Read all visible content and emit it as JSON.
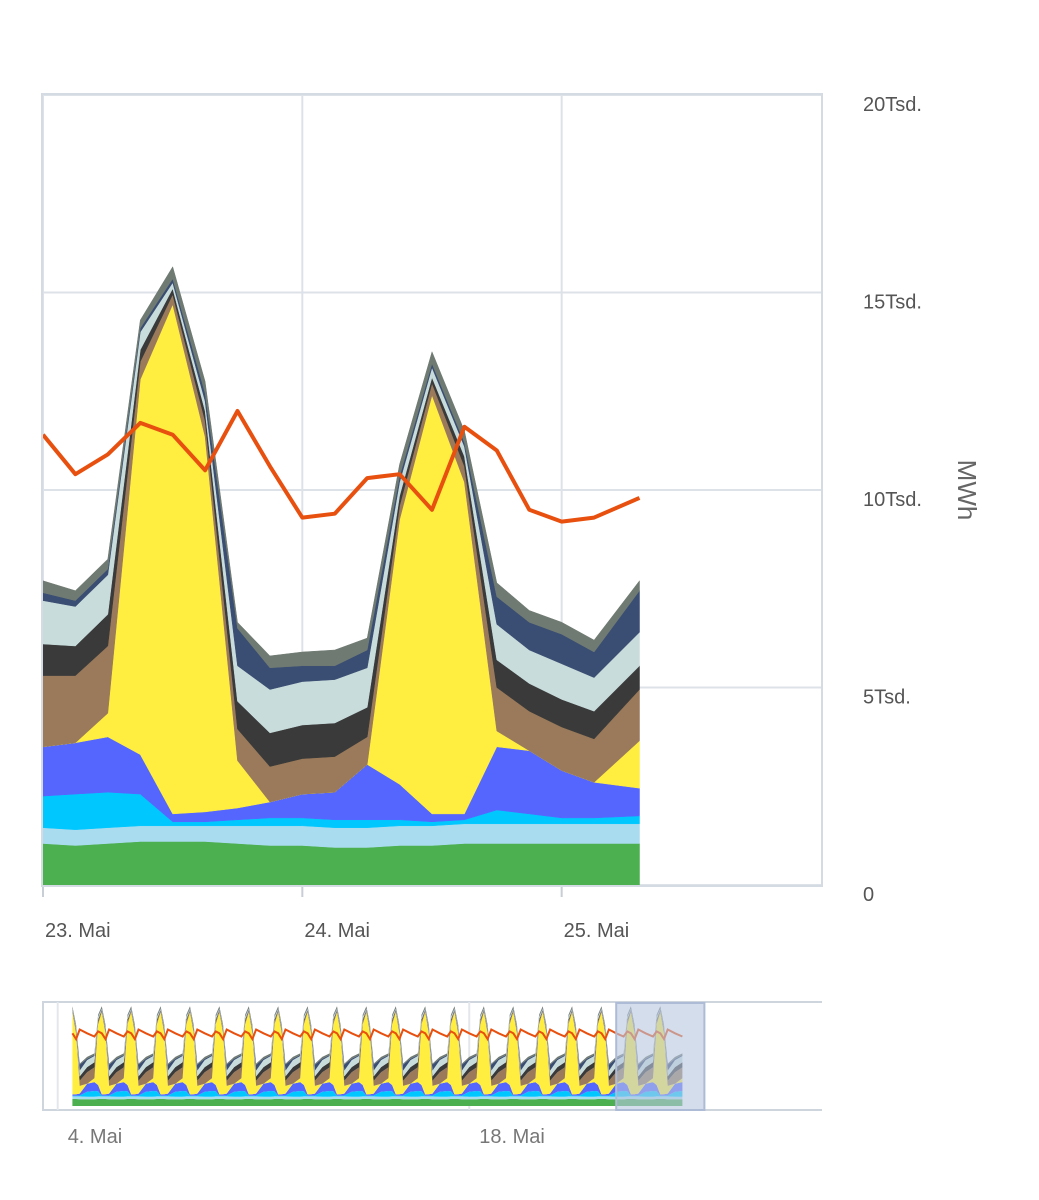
{
  "chart_data": {
    "type": "area",
    "stacked": true,
    "ylabel": "MWh",
    "ylim": [
      0,
      20000
    ],
    "yticks": [
      0,
      5000,
      10000,
      15000,
      20000
    ],
    "ytick_labels": [
      "0",
      "5Tsd.",
      "10Tsd.",
      "15Tsd.",
      "20Tsd."
    ],
    "xlim": [
      0,
      3
    ],
    "xticks": [
      0,
      1,
      2
    ],
    "xtick_labels": [
      "23. Mai",
      "24. Mai",
      "25. Mai"
    ],
    "grid": true,
    "legend": "none",
    "x": [
      0,
      0.125,
      0.25,
      0.375,
      0.5,
      0.625,
      0.75,
      0.875,
      1,
      1.125,
      1.25,
      1.375,
      1.5,
      1.625,
      1.75,
      1.875,
      2,
      2.125,
      2.3
    ],
    "series": [
      {
        "color": "#4caf50",
        "values": [
          1050,
          1000,
          1050,
          1100,
          1100,
          1100,
          1050,
          1000,
          1000,
          950,
          950,
          1000,
          1000,
          1050,
          1050,
          1050,
          1050,
          1050,
          1050
        ]
      },
      {
        "color": "#aadcf0",
        "values": [
          400,
          400,
          400,
          400,
          400,
          400,
          450,
          500,
          500,
          500,
          500,
          500,
          500,
          500,
          500,
          500,
          500,
          500,
          500
        ]
      },
      {
        "color": "#00c8ff",
        "values": [
          800,
          900,
          900,
          800,
          100,
          100,
          150,
          200,
          200,
          200,
          200,
          150,
          100,
          100,
          350,
          250,
          150,
          150,
          200
        ]
      },
      {
        "color": "#5566ff",
        "values": [
          1250,
          1300,
          1400,
          1000,
          200,
          250,
          300,
          400,
          600,
          700,
          1400,
          900,
          200,
          150,
          1600,
          1600,
          1200,
          900,
          700
        ]
      },
      {
        "color": "#ffee40",
        "values": [
          0,
          0,
          600,
          9500,
          12900,
          9500,
          1200,
          0,
          0,
          0,
          0,
          6700,
          10600,
          8400,
          400,
          0,
          0,
          0,
          1200
        ]
      },
      {
        "color": "#9a7a5a",
        "values": [
          1800,
          1700,
          1700,
          450,
          250,
          400,
          800,
          900,
          900,
          900,
          700,
          350,
          300,
          400,
          1100,
          1000,
          1100,
          1100,
          1300
        ]
      },
      {
        "color": "#3a3a3a",
        "values": [
          800,
          750,
          800,
          300,
          150,
          250,
          700,
          850,
          850,
          850,
          750,
          250,
          150,
          250,
          700,
          700,
          700,
          700,
          600
        ]
      },
      {
        "color": "#c8dcdc",
        "values": [
          1100,
          1000,
          1000,
          450,
          150,
          250,
          900,
          1100,
          1100,
          1100,
          1000,
          350,
          250,
          250,
          900,
          850,
          900,
          850,
          850
        ]
      },
      {
        "color": "#3a4d72",
        "values": [
          200,
          150,
          150,
          100,
          100,
          200,
          950,
          550,
          400,
          350,
          450,
          150,
          100,
          100,
          700,
          700,
          750,
          650,
          1050
        ]
      },
      {
        "color": "#6f7a72",
        "values": [
          300,
          250,
          250,
          200,
          300,
          300,
          150,
          300,
          350,
          400,
          300,
          300,
          300,
          300,
          350,
          300,
          300,
          300,
          250
        ]
      }
    ],
    "line": {
      "color": "#e8500f",
      "values": [
        11400,
        10400,
        10900,
        11700,
        11400,
        10500,
        12000,
        10600,
        9300,
        9400,
        10300,
        10400,
        9500,
        11600,
        11000,
        9500,
        9200,
        9300,
        9800
      ]
    },
    "navigator": {
      "xtick_labels": [
        "4. Mai",
        "18. Mai"
      ],
      "xticks": [
        -19,
        -5
      ],
      "xlim": [
        -19.5,
        7
      ],
      "data_end": 2.3,
      "selection": [
        0,
        3
      ]
    }
  }
}
